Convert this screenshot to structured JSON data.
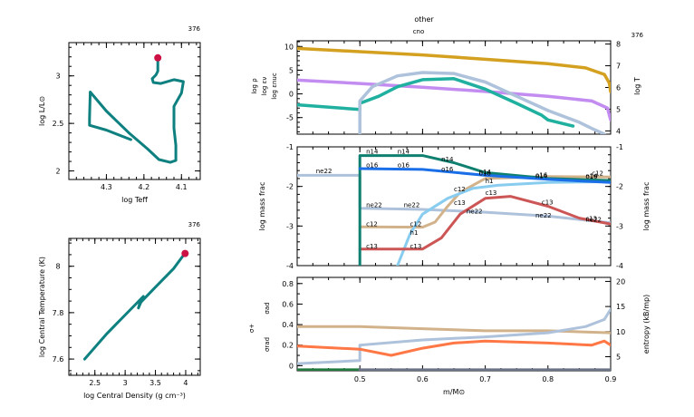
{
  "chart_data": [
    {
      "id": "hr",
      "type": "line",
      "model_number": "376",
      "xlabel": "log Teff",
      "ylabel": "log L/L⊙",
      "xlim": [
        4.4,
        4.05
      ],
      "ylim": [
        1.91,
        3.35
      ],
      "xticks": [
        4.3,
        4.2,
        4.1
      ],
      "xtick_labels": [
        "4.3",
        "4.2",
        "4.1"
      ],
      "yticks": [
        2,
        2.5,
        3
      ],
      "ytick_labels": [
        "2",
        "2.5",
        "3"
      ],
      "track_color": "#0f8080",
      "marker_color": "#cc1144",
      "series": [
        {
          "name": "track",
          "x": [
            4.235,
            4.3,
            4.345,
            4.345,
            4.343,
            4.3,
            4.24,
            4.19,
            4.16,
            4.13,
            4.115,
            4.115,
            4.12,
            4.12,
            4.1,
            4.095,
            4.12,
            4.155,
            4.175,
            4.178,
            4.168,
            4.163,
            4.163
          ],
          "y": [
            2.33,
            2.43,
            2.48,
            2.55,
            2.83,
            2.63,
            2.4,
            2.23,
            2.12,
            2.09,
            2.11,
            2.27,
            2.45,
            2.68,
            2.82,
            2.94,
            2.96,
            2.92,
            2.93,
            2.97,
            3.01,
            3.05,
            3.18
          ]
        }
      ],
      "current_point": {
        "x": 4.163,
        "y": 3.19
      }
    },
    {
      "id": "center",
      "type": "line",
      "model_number": "376",
      "xlabel": "log Central Density (g cm⁻³)",
      "ylabel": "log Central Temperature (K)",
      "xlim": [
        2.07,
        4.24
      ],
      "ylim": [
        7.53,
        8.12
      ],
      "xticks": [
        2.5,
        3,
        3.5,
        4
      ],
      "xtick_labels": [
        "2.5",
        "3",
        "3.5",
        "4"
      ],
      "yticks": [
        7.6,
        7.8,
        8
      ],
      "ytick_labels": [
        "7.6",
        "7.8",
        "8"
      ],
      "track_color": "#0f8080",
      "marker_color": "#cc1144",
      "series": [
        {
          "name": "track",
          "x": [
            2.33,
            2.7,
            3.0,
            3.3,
            3.22,
            3.24,
            3.5,
            3.8,
            3.97
          ],
          "y": [
            7.6,
            7.71,
            7.79,
            7.87,
            7.82,
            7.84,
            7.91,
            7.99,
            8.05
          ]
        }
      ],
      "current_point": {
        "x": 3.99,
        "y": 8.055
      }
    },
    {
      "id": "profile-top",
      "type": "line",
      "model_number": "376",
      "title": "other",
      "subtitle": "cno",
      "xlim": [
        0.4,
        0.9
      ],
      "ylim": [
        -8.5,
        11.2
      ],
      "y2lim": [
        3.85,
        8.15
      ],
      "yticks": [
        -5,
        0,
        5,
        10
      ],
      "ytick_labels": [
        "-5",
        "0",
        "5",
        "10"
      ],
      "y2ticks": [
        4,
        5,
        6,
        7,
        8
      ],
      "y2tick_labels": [
        "4",
        "5",
        "6",
        "7",
        "8"
      ],
      "left_labels": [
        {
          "text": "log ρ",
          "color": "#c38cf0"
        },
        {
          "text": "log εν",
          "color": "#20b0a0"
        },
        {
          "text": "log εnuc",
          "color": "#aec2dc"
        }
      ],
      "right_label": {
        "text": "log T",
        "color": "#d4a020"
      },
      "series": [
        {
          "name": "log T",
          "axis": "right",
          "color": "#d4a020",
          "x": [
            0.4,
            0.5,
            0.6,
            0.7,
            0.8,
            0.86,
            0.89,
            0.898,
            0.9
          ],
          "y": [
            7.8,
            7.65,
            7.5,
            7.3,
            7.1,
            6.9,
            6.6,
            6.2,
            5.8
          ]
        },
        {
          "name": "log rho",
          "axis": "left",
          "color": "#c38cf0",
          "x": [
            0.4,
            0.5,
            0.6,
            0.7,
            0.8,
            0.87,
            0.895,
            0.9
          ],
          "y": [
            2.9,
            2.2,
            1.4,
            0.5,
            -0.5,
            -1.5,
            -3.0,
            -5.5
          ]
        },
        {
          "name": "log eps_nu",
          "axis": "left",
          "color": "#20b0a0",
          "x": [
            0.4,
            0.5,
            0.5,
            0.53,
            0.56,
            0.6,
            0.65,
            0.7,
            0.75,
            0.79,
            0.8,
            0.84
          ],
          "y": [
            -2.3,
            -3.3,
            -2.0,
            -0.5,
            1.5,
            3.0,
            3.2,
            1.0,
            -2.0,
            -4.5,
            -5.5,
            -6.8
          ]
        },
        {
          "name": "log eps_nuc",
          "axis": "left",
          "color": "#aec2dc",
          "x": [
            0.5,
            0.5,
            0.52,
            0.56,
            0.6,
            0.65,
            0.7,
            0.75,
            0.8,
            0.85,
            0.87,
            0.89
          ],
          "y": [
            -8.5,
            -1.5,
            1.5,
            3.8,
            4.5,
            4.3,
            2.5,
            -0.5,
            -3.5,
            -6.0,
            -7.3,
            -8.5
          ]
        }
      ]
    },
    {
      "id": "profile-mid",
      "type": "line",
      "xlim": [
        0.4,
        0.9
      ],
      "ylim": [
        -4,
        -1
      ],
      "yticks": [
        -4,
        -3,
        -2,
        -1
      ],
      "ytick_labels": [
        "-4",
        "-3",
        "-2",
        "-1"
      ],
      "ylabel": "log mass frac",
      "y2label": "log mass frac",
      "series": [
        {
          "name": "ne22",
          "color": "#aec2dc",
          "x": [
            0.4,
            0.5,
            0.5,
            0.6,
            0.7,
            0.8,
            0.9
          ],
          "y": [
            -1.72,
            -1.72,
            -2.55,
            -2.58,
            -2.65,
            -2.75,
            -2.92
          ],
          "labels": [
            {
              "x": 0.43,
              "y": -1.6
            },
            {
              "x": 0.51,
              "y": -2.45
            },
            {
              "x": 0.57,
              "y": -2.45
            },
            {
              "x": 0.67,
              "y": -2.62
            },
            {
              "x": 0.78,
              "y": -2.72
            },
            {
              "x": 0.86,
              "y": -2.82
            }
          ]
        },
        {
          "name": "c12",
          "color": "#d2b28a",
          "x": [
            0.5,
            0.6,
            0.62,
            0.64,
            0.66,
            0.7,
            0.8,
            0.9
          ],
          "y": [
            -3.02,
            -3.03,
            -2.9,
            -2.5,
            -2.15,
            -1.8,
            -1.75,
            -1.76
          ],
          "labels": [
            {
              "x": 0.51,
              "y": -2.93
            },
            {
              "x": 0.58,
              "y": -2.93
            },
            {
              "x": 0.65,
              "y": -2.05
            },
            {
              "x": 0.87,
              "y": -1.65
            }
          ]
        },
        {
          "name": "h1",
          "color": "#88ccf0",
          "x": [
            0.56,
            0.58,
            0.6,
            0.64,
            0.68,
            0.72,
            0.8,
            0.9
          ],
          "y": [
            -4.0,
            -3.2,
            -2.7,
            -2.3,
            -2.05,
            -1.97,
            -1.9,
            -1.88
          ],
          "labels": [
            {
              "x": 0.58,
              "y": -3.15
            },
            {
              "x": 0.7,
              "y": -1.85
            }
          ]
        },
        {
          "name": "c13",
          "color": "#cc5555",
          "x": [
            0.5,
            0.6,
            0.63,
            0.66,
            0.7,
            0.74,
            0.8,
            0.85,
            0.9
          ],
          "y": [
            -3.58,
            -3.58,
            -3.3,
            -2.7,
            -2.3,
            -2.25,
            -2.5,
            -2.8,
            -2.95
          ],
          "labels": [
            {
              "x": 0.51,
              "y": -3.5
            },
            {
              "x": 0.58,
              "y": -3.5
            },
            {
              "x": 0.65,
              "y": -2.4
            },
            {
              "x": 0.7,
              "y": -2.15
            },
            {
              "x": 0.79,
              "y": -2.38
            },
            {
              "x": 0.86,
              "y": -2.8
            }
          ]
        },
        {
          "name": "n14",
          "color": "#0f8070",
          "x": [
            0.5,
            0.5,
            0.6,
            0.65,
            0.7,
            0.8,
            0.9
          ],
          "y": [
            -4.0,
            -1.22,
            -1.22,
            -1.4,
            -1.65,
            -1.8,
            -1.85
          ],
          "labels": [
            {
              "x": 0.51,
              "y": -1.1
            },
            {
              "x": 0.56,
              "y": -1.1
            },
            {
              "x": 0.63,
              "y": -1.3
            },
            {
              "x": 0.69,
              "y": -1.62
            },
            {
              "x": 0.78,
              "y": -1.72
            },
            {
              "x": 0.86,
              "y": -1.72
            }
          ]
        },
        {
          "name": "o16",
          "color": "#1a6fe8",
          "x": [
            0.5,
            0.6,
            0.7,
            0.8,
            0.9
          ],
          "y": [
            -1.55,
            -1.57,
            -1.72,
            -1.82,
            -1.9
          ],
          "labels": [
            {
              "x": 0.51,
              "y": -1.45
            },
            {
              "x": 0.56,
              "y": -1.45
            },
            {
              "x": 0.63,
              "y": -1.55
            },
            {
              "x": 0.69,
              "y": -1.65
            },
            {
              "x": 0.78,
              "y": -1.7
            },
            {
              "x": 0.86,
              "y": -1.73
            }
          ]
        }
      ]
    },
    {
      "id": "profile-bot",
      "type": "line",
      "xlim": [
        0.4,
        0.9
      ],
      "ylim": [
        -0.05,
        0.86
      ],
      "yticks": [
        0,
        0.2,
        0.4,
        0.6,
        0.8
      ],
      "ytick_labels": [
        "0",
        "0.2",
        "0.4",
        "0.6",
        "0.8"
      ],
      "y2lim": [
        2.2,
        20.8
      ],
      "y2ticks": [
        5,
        10,
        15,
        20
      ],
      "y2tick_labels": [
        "5",
        "10",
        "15",
        "20"
      ],
      "xticks": [
        0.5,
        0.6,
        0.7,
        0.8,
        0.9
      ],
      "xtick_labels": [
        "0.5",
        "0.6",
        "0.7",
        "0.8",
        "0.9"
      ],
      "xlabel": "m/M⊙",
      "y2label": "entropy (kB/mp)",
      "left_labels": [
        {
          "text": "σad",
          "color": "#d2b28a"
        },
        {
          "text": "σ+",
          "color": "#aa2222"
        },
        {
          "text": "σrad",
          "color": "#ff7744"
        }
      ],
      "series": [
        {
          "name": "sigma_ad",
          "color": "#d2b28a",
          "x": [
            0.4,
            0.5,
            0.6,
            0.7,
            0.8,
            0.9
          ],
          "y": [
            0.38,
            0.38,
            0.36,
            0.34,
            0.34,
            0.32
          ]
        },
        {
          "name": "entropy",
          "color": "#aec2dc",
          "x": [
            0.4,
            0.5,
            0.5,
            0.6,
            0.7,
            0.8,
            0.86,
            0.89,
            0.9
          ],
          "y": [
            0.02,
            0.05,
            0.2,
            0.25,
            0.28,
            0.32,
            0.38,
            0.45,
            0.55
          ]
        },
        {
          "name": "sigma_rad",
          "color": "#ff7744",
          "x": [
            0.4,
            0.5,
            0.55,
            0.6,
            0.65,
            0.7,
            0.8,
            0.87,
            0.89,
            0.9
          ],
          "y": [
            0.19,
            0.16,
            0.1,
            0.17,
            0.22,
            0.24,
            0.22,
            0.2,
            0.24,
            0.2
          ]
        },
        {
          "name": "mixing_base",
          "color": "#207a40",
          "x": [
            0.4,
            0.5
          ],
          "y": [
            -0.04,
            -0.04
          ]
        },
        {
          "name": "mixing_base2",
          "color": "#6a7486",
          "x": [
            0.5,
            0.9
          ],
          "y": [
            -0.04,
            -0.04
          ]
        }
      ]
    }
  ]
}
